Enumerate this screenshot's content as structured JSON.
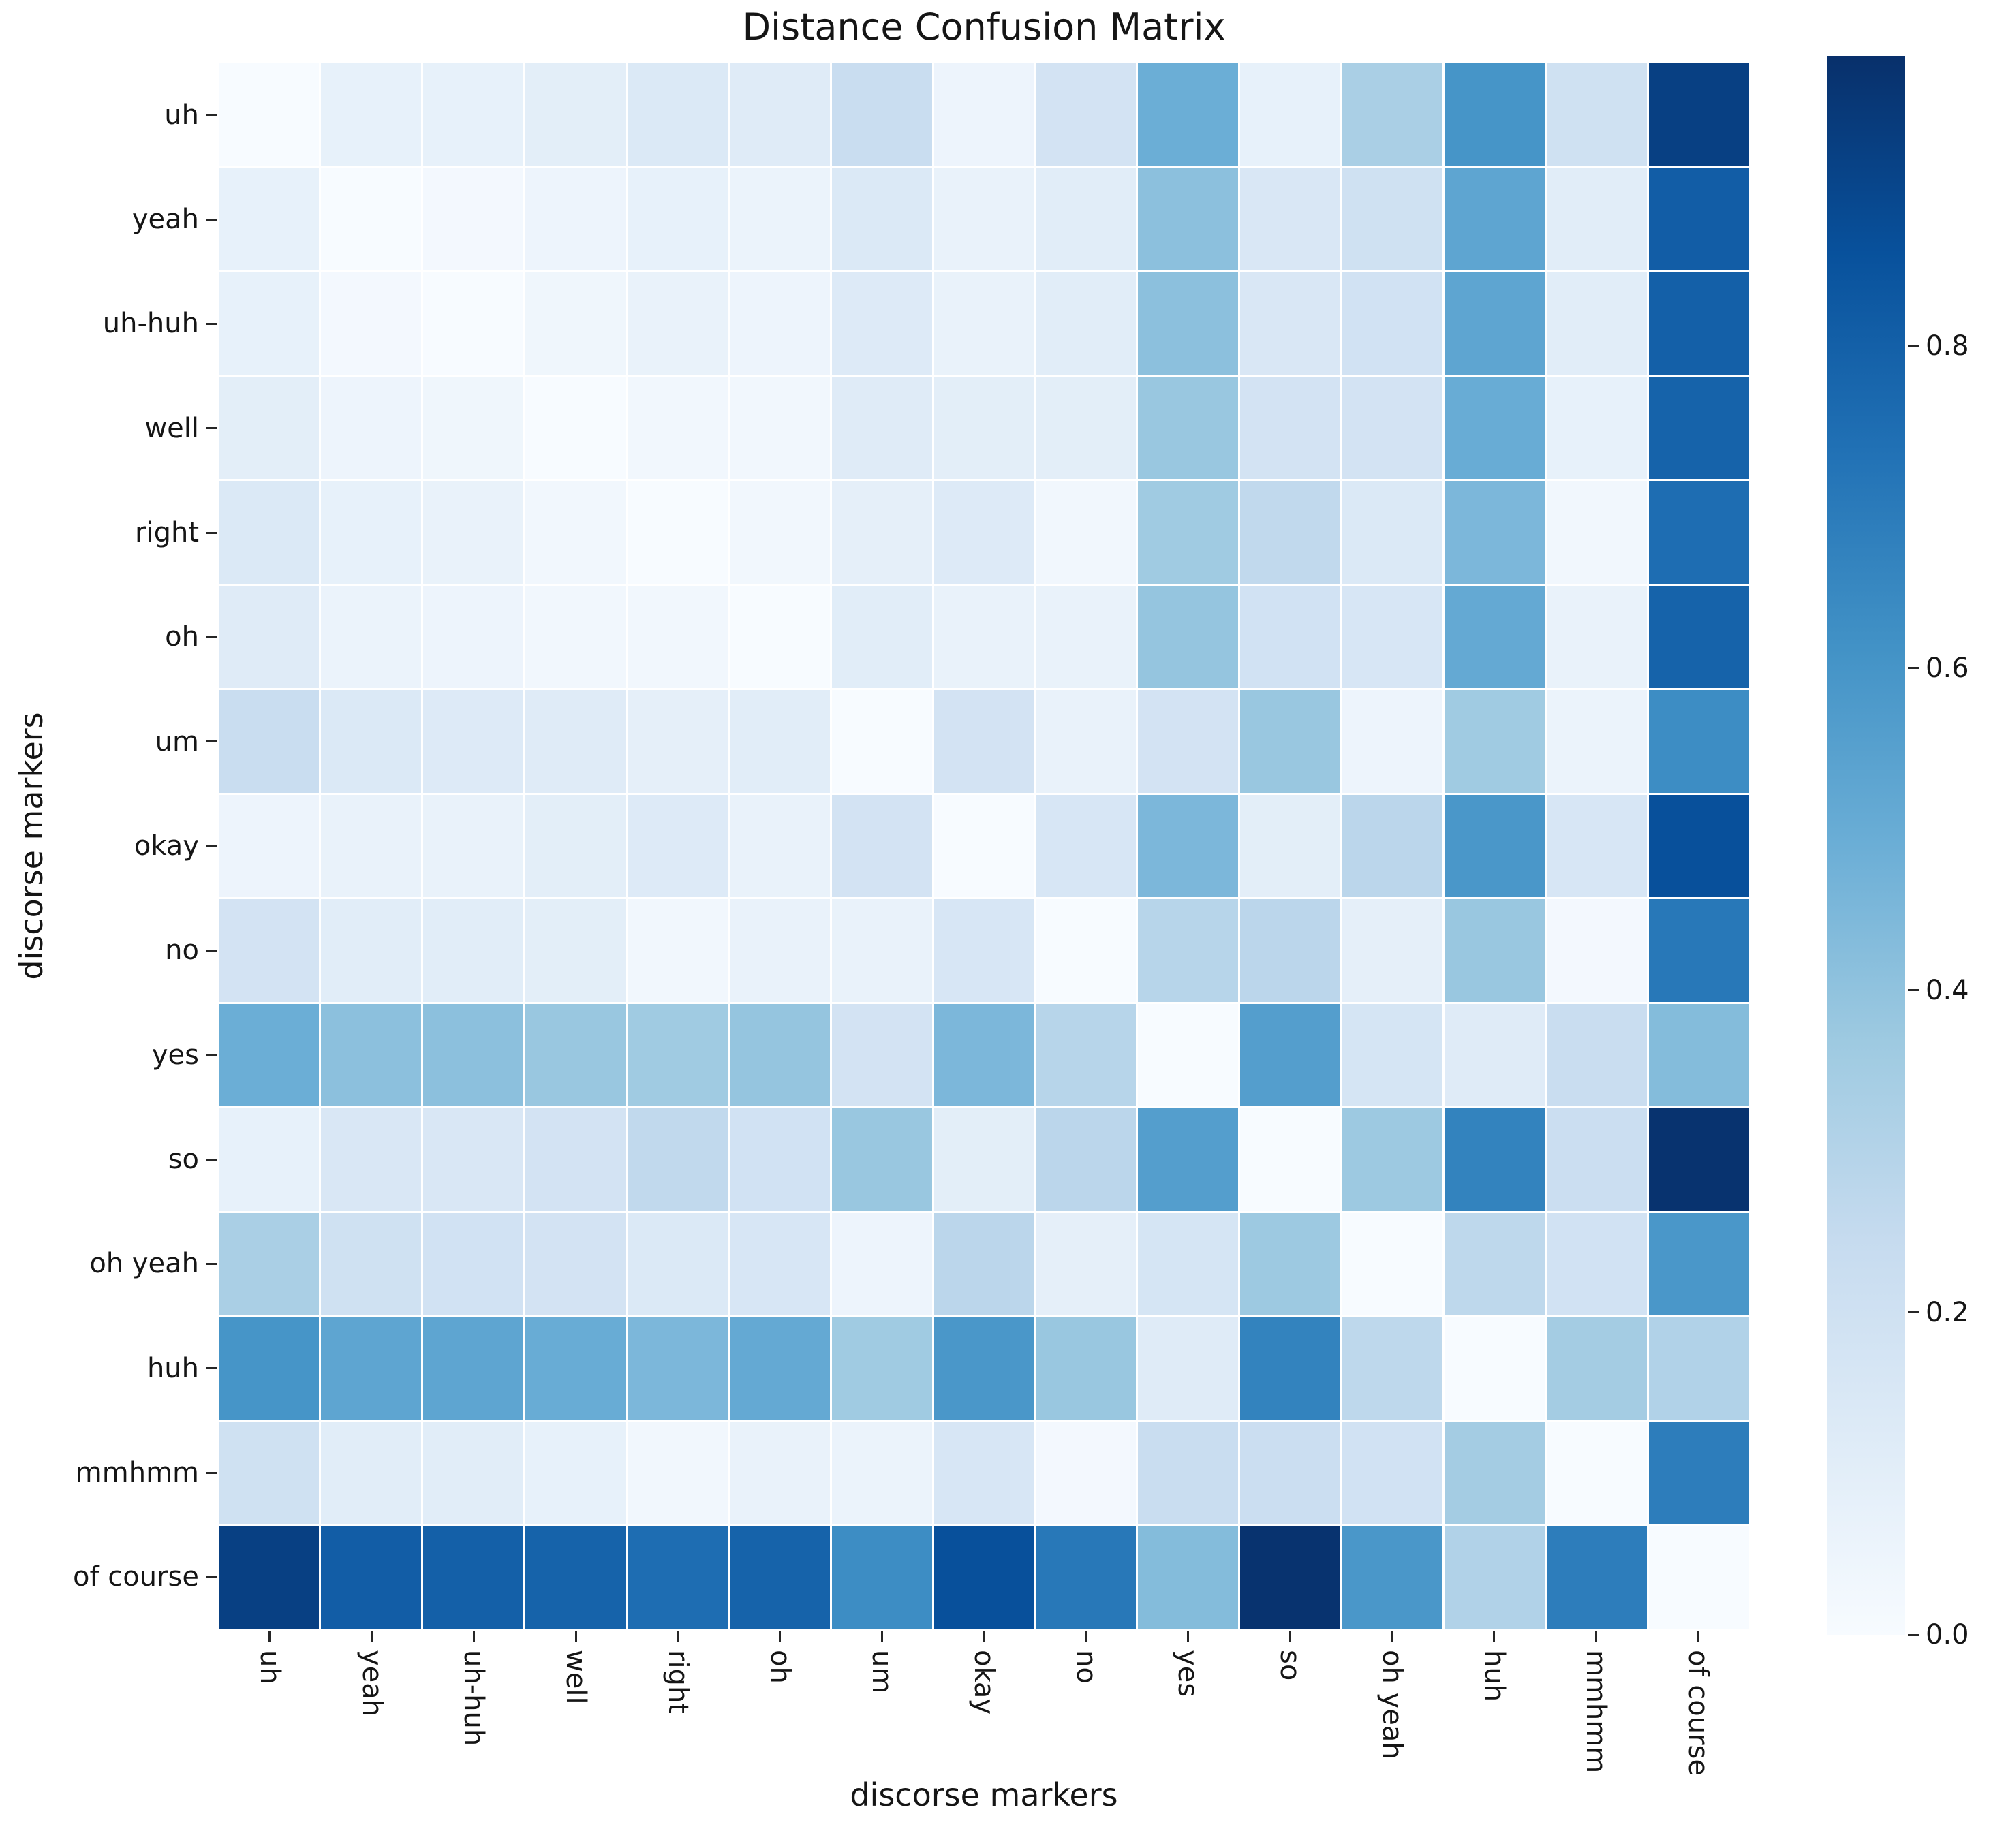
{
  "chart_data": {
    "type": "heatmap",
    "title": "Distance Confusion Matrix",
    "xlabel": "discorse markers",
    "ylabel": "discorse markers",
    "categories": [
      "uh",
      "yeah",
      "uh-huh",
      "well",
      "right",
      "oh",
      "um",
      "okay",
      "no",
      "yes",
      "so",
      "oh yeah",
      "huh",
      "mmhmm",
      "of course"
    ],
    "matrix": [
      [
        0.0,
        0.08,
        0.08,
        0.1,
        0.14,
        0.12,
        0.23,
        0.05,
        0.18,
        0.49,
        0.08,
        0.33,
        0.6,
        0.2,
        0.92
      ],
      [
        0.08,
        0.0,
        0.02,
        0.05,
        0.08,
        0.06,
        0.14,
        0.07,
        0.11,
        0.41,
        0.15,
        0.2,
        0.53,
        0.11,
        0.81
      ],
      [
        0.08,
        0.02,
        0.0,
        0.04,
        0.07,
        0.05,
        0.13,
        0.07,
        0.11,
        0.41,
        0.15,
        0.19,
        0.53,
        0.11,
        0.8
      ],
      [
        0.1,
        0.05,
        0.04,
        0.0,
        0.03,
        0.03,
        0.12,
        0.1,
        0.1,
        0.38,
        0.18,
        0.18,
        0.5,
        0.08,
        0.79
      ],
      [
        0.14,
        0.08,
        0.07,
        0.03,
        0.0,
        0.03,
        0.09,
        0.13,
        0.03,
        0.36,
        0.26,
        0.14,
        0.45,
        0.03,
        0.75
      ],
      [
        0.12,
        0.06,
        0.05,
        0.03,
        0.03,
        0.0,
        0.11,
        0.07,
        0.07,
        0.39,
        0.19,
        0.16,
        0.51,
        0.07,
        0.79
      ],
      [
        0.23,
        0.14,
        0.13,
        0.12,
        0.09,
        0.11,
        0.0,
        0.18,
        0.07,
        0.18,
        0.38,
        0.05,
        0.36,
        0.06,
        0.63
      ],
      [
        0.05,
        0.07,
        0.07,
        0.1,
        0.13,
        0.07,
        0.18,
        0.0,
        0.16,
        0.45,
        0.1,
        0.28,
        0.59,
        0.16,
        0.86
      ],
      [
        0.18,
        0.11,
        0.11,
        0.1,
        0.03,
        0.07,
        0.07,
        0.16,
        0.0,
        0.29,
        0.28,
        0.09,
        0.38,
        0.02,
        0.71
      ],
      [
        0.49,
        0.41,
        0.41,
        0.38,
        0.36,
        0.39,
        0.18,
        0.45,
        0.29,
        0.0,
        0.56,
        0.17,
        0.12,
        0.23,
        0.43
      ],
      [
        0.08,
        0.15,
        0.15,
        0.18,
        0.26,
        0.19,
        0.38,
        0.1,
        0.28,
        0.56,
        0.0,
        0.37,
        0.67,
        0.22,
        0.97
      ],
      [
        0.33,
        0.2,
        0.19,
        0.18,
        0.14,
        0.16,
        0.05,
        0.28,
        0.09,
        0.17,
        0.37,
        0.0,
        0.27,
        0.19,
        0.59
      ],
      [
        0.6,
        0.53,
        0.53,
        0.5,
        0.45,
        0.51,
        0.36,
        0.59,
        0.38,
        0.12,
        0.67,
        0.27,
        0.0,
        0.35,
        0.31
      ],
      [
        0.2,
        0.11,
        0.11,
        0.08,
        0.03,
        0.07,
        0.06,
        0.16,
        0.02,
        0.23,
        0.22,
        0.19,
        0.35,
        0.0,
        0.69
      ],
      [
        0.92,
        0.81,
        0.8,
        0.79,
        0.75,
        0.79,
        0.63,
        0.86,
        0.71,
        0.43,
        0.97,
        0.59,
        0.31,
        0.69,
        0.0
      ]
    ],
    "vmin": 0.0,
    "vmax": 0.98,
    "colormap": "Blues",
    "colormap_anchors": [
      "#f7fbff",
      "#deebf7",
      "#c6dbef",
      "#9ecae1",
      "#6baed6",
      "#4292c6",
      "#2171b5",
      "#08519c",
      "#08306b"
    ],
    "colorbar_ticks": [
      {
        "label": "0.0",
        "value": 0.0
      },
      {
        "label": "0.2",
        "value": 0.2
      },
      {
        "label": "0.4",
        "value": 0.4
      },
      {
        "label": "0.6",
        "value": 0.6
      },
      {
        "label": "0.8",
        "value": 0.8
      }
    ],
    "grid_line_color": "#ffffff",
    "legend_position": "right-colorbar",
    "grid": false
  }
}
